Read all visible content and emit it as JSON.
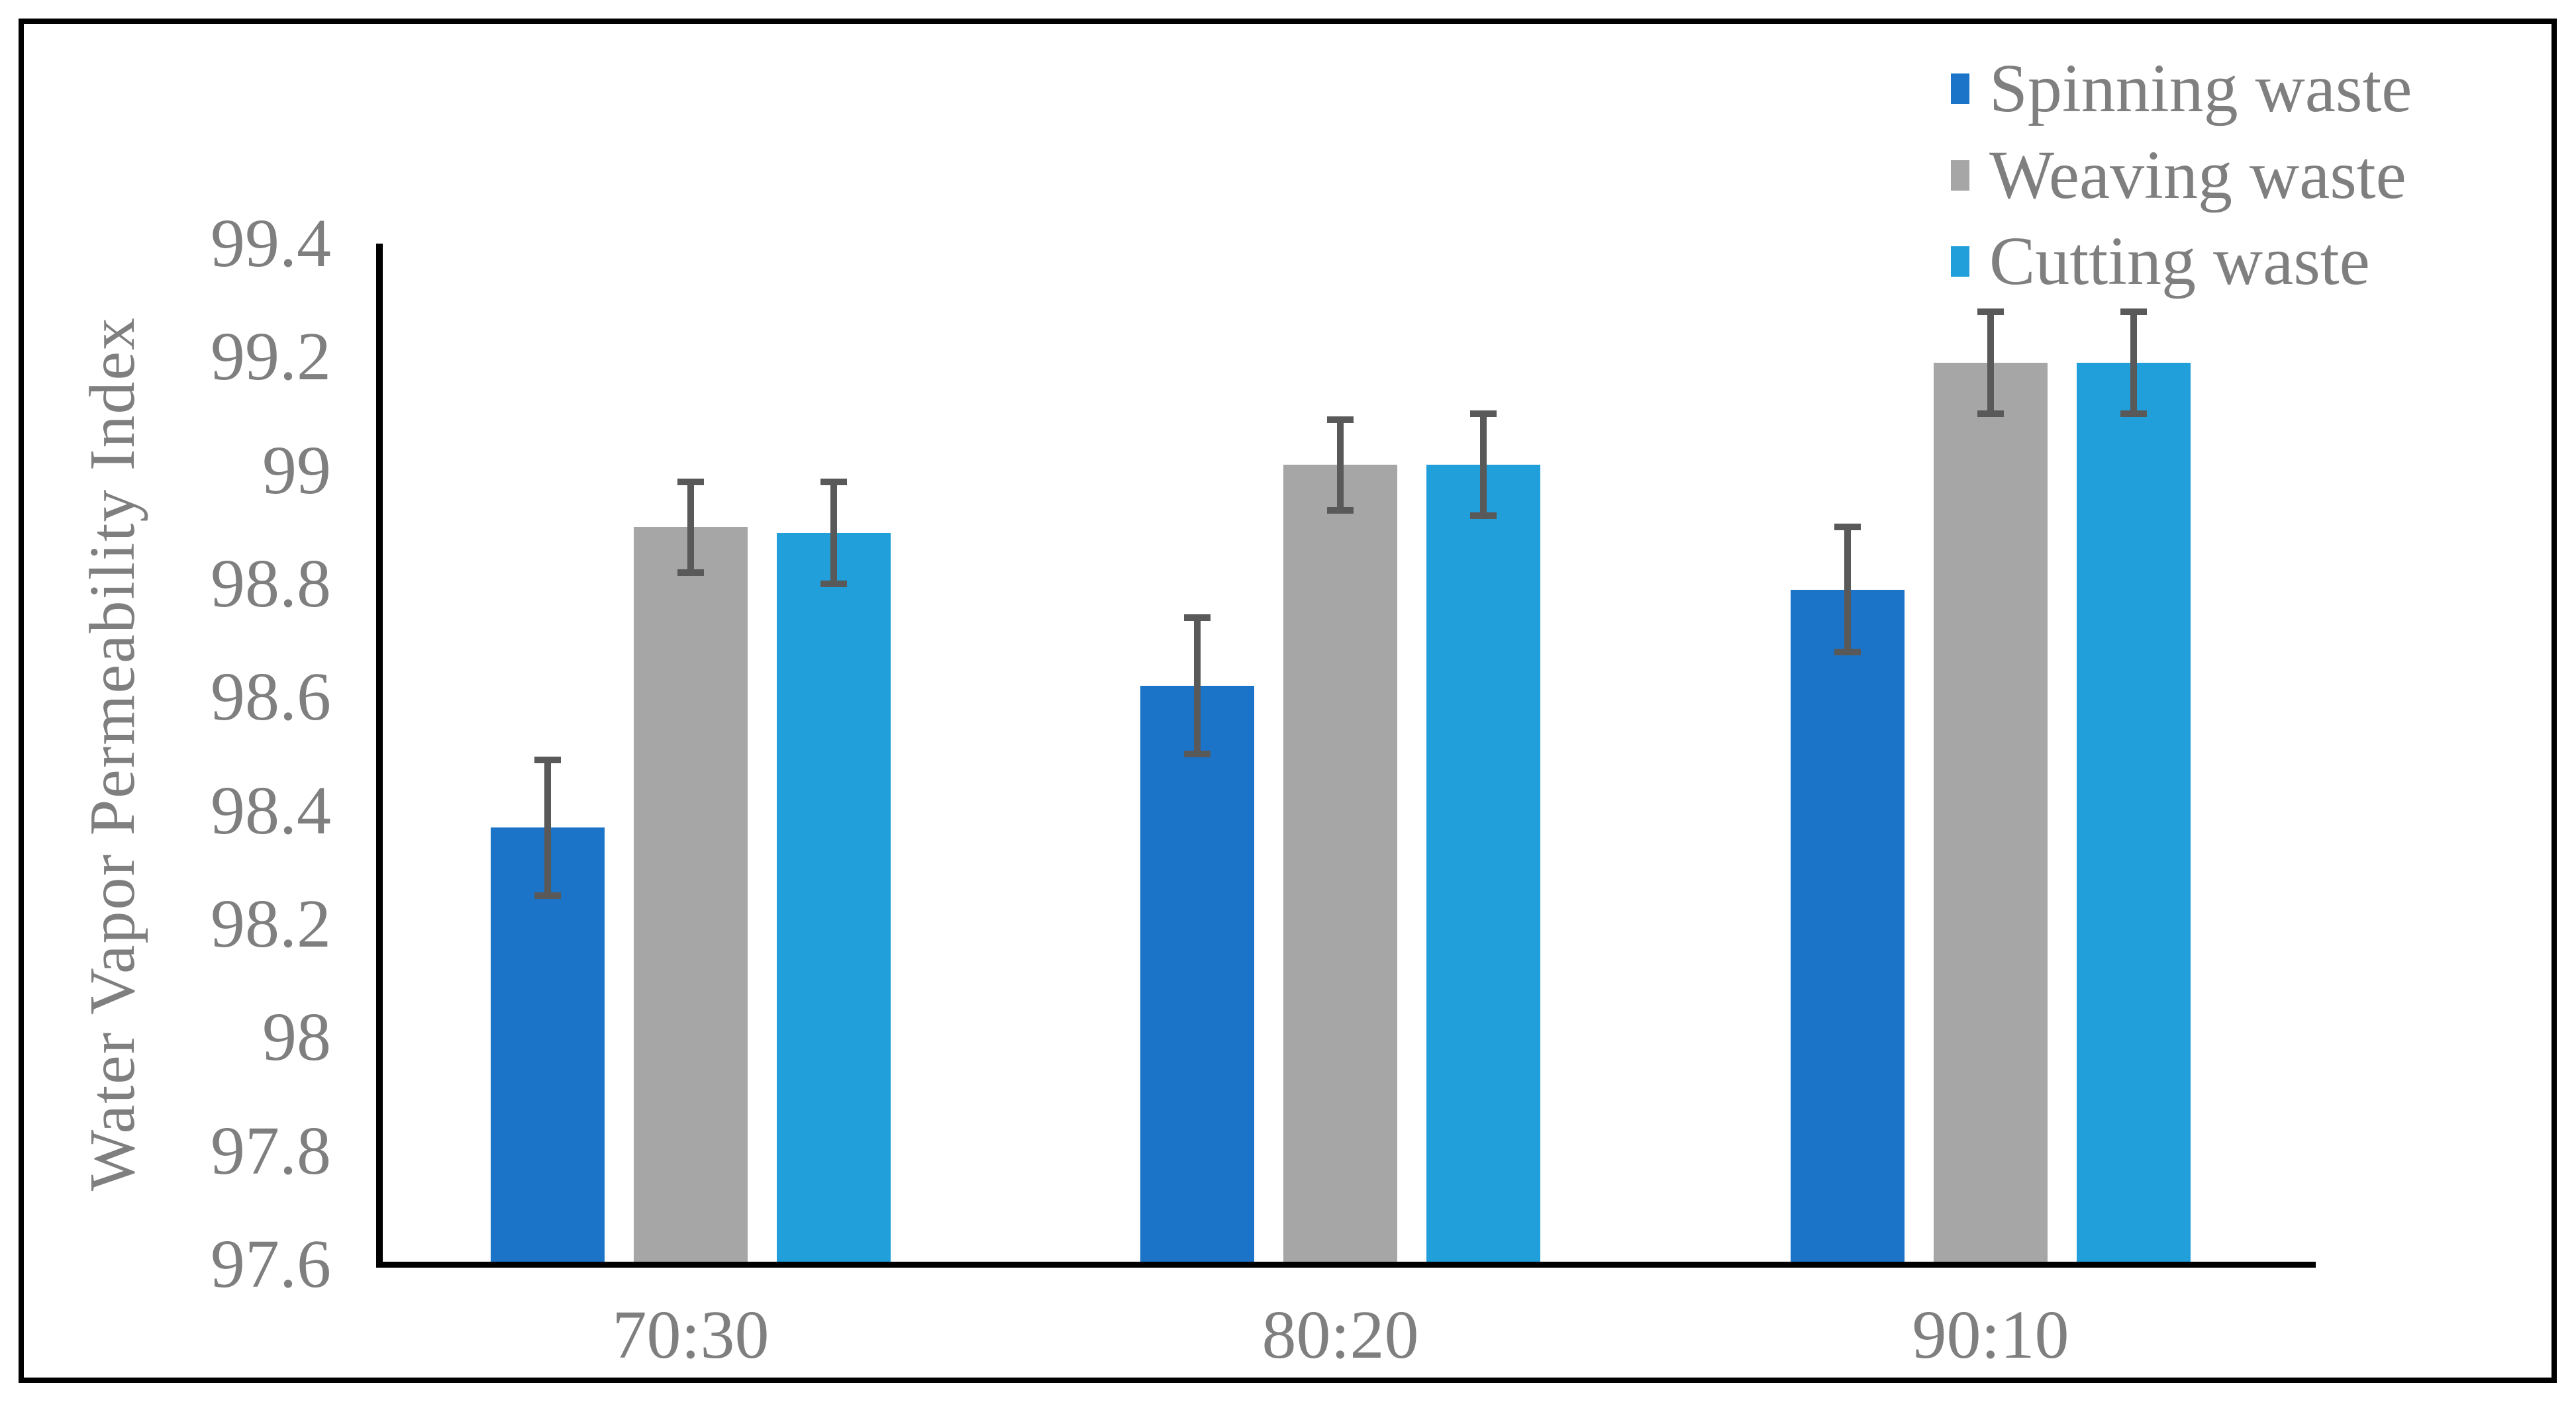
{
  "figure": {
    "background": "#FFFFFF",
    "border_color": "#000000",
    "axis_color": "#000000",
    "text_color": "#7F7F7F"
  },
  "chart_data": {
    "type": "bar",
    "title": "",
    "categories": [
      "70:30",
      "80:20",
      "90:10"
    ],
    "series": [
      {
        "name": "Spinning waste",
        "color": "#1B74C8",
        "values": [
          98.37,
          98.62,
          98.79
        ],
        "errors": [
          0.12,
          0.12,
          0.11
        ]
      },
      {
        "name": "Weaving waste",
        "color": "#A6A6A6",
        "values": [
          98.9,
          99.01,
          99.19
        ],
        "errors": [
          0.08,
          0.08,
          0.09
        ]
      },
      {
        "name": "Cutting waste",
        "color": "#219FDB",
        "values": [
          98.89,
          99.01,
          99.19
        ],
        "errors": [
          0.09,
          0.09,
          0.09
        ]
      }
    ],
    "xlabel": "",
    "ylabel": "Water Vapor Permeability Index",
    "ylim": [
      97.6,
      99.4
    ],
    "ytick_step": 0.2,
    "ytick_labels": [
      "97.6",
      "97.8",
      "98",
      "98.2",
      "98.4",
      "98.6",
      "98.8",
      "99",
      "99.2",
      "99.4"
    ],
    "grid": false,
    "legend_position": "top-right",
    "error_bar_color": "#595959"
  }
}
